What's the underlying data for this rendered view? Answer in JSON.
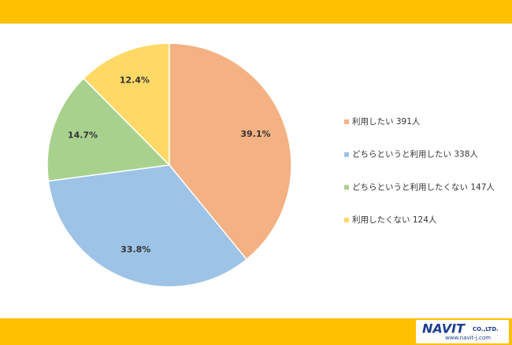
{
  "chart_data": {
    "type": "pie",
    "categories": [
      "利用したい 391人",
      "どちらというと利用したい 338人",
      "どちらというと利用したくない 147人",
      "利用したくない 124人"
    ],
    "values": [
      39.1,
      33.8,
      14.7,
      12.4
    ],
    "value_labels": [
      "39.1%",
      "33.8%",
      "14.7%",
      "12.4%"
    ],
    "colors": [
      "#f4b183",
      "#9dc3e6",
      "#a9d18e",
      "#ffd966"
    ],
    "legend": "right"
  },
  "footer": {
    "logo": "NAVIT",
    "company": "CO.,LTD.",
    "url": "www.navit-j.com"
  }
}
